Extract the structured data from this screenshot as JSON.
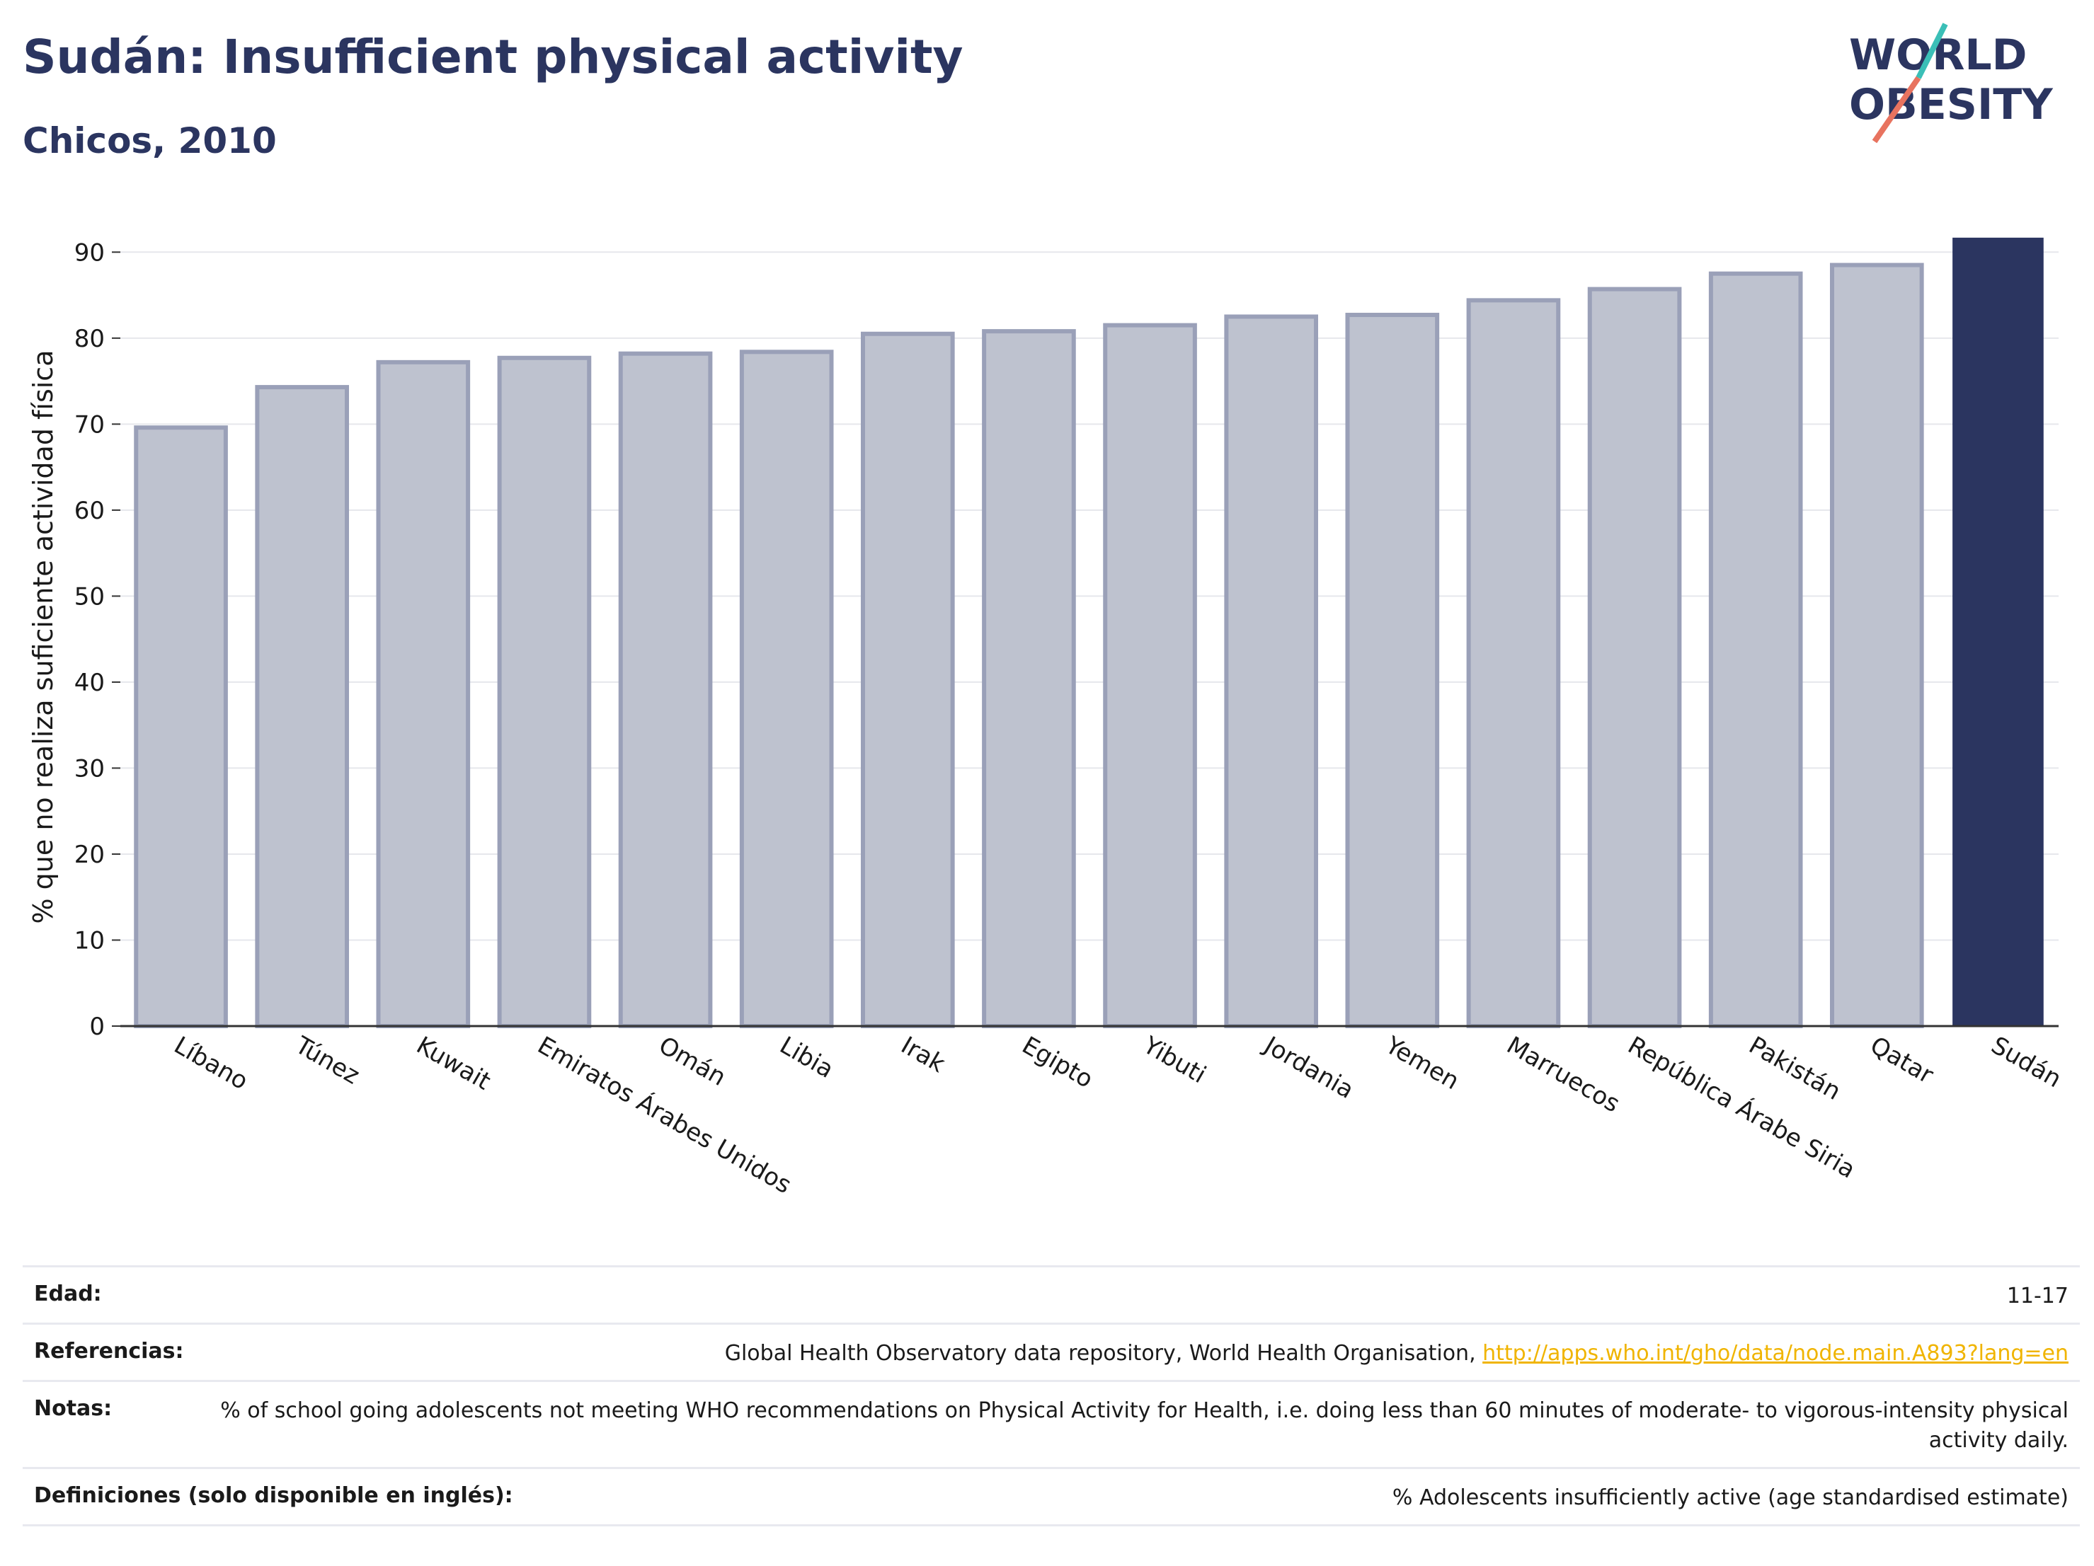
{
  "header": {
    "title": "Sudán: Insufficient physical activity",
    "subtitle": "Chicos, 2010"
  },
  "logo": {
    "line1": "WORLD",
    "line2": "OBESITY"
  },
  "colors": {
    "highlight": "#2b3560",
    "bar_fill": "#bec2cf",
    "bar_stroke": "#9aa0b8",
    "accent_teal": "#3bbfb7",
    "accent_coral": "#e8735f",
    "link": "#f0b400"
  },
  "chart_data": {
    "type": "bar",
    "categories": [
      "Líbano",
      "Túnez",
      "Kuwait",
      "Emiratos Árabes Unidos",
      "Omán",
      "Libia",
      "Irak",
      "Egipto",
      "Yibuti",
      "Jordania",
      "Yemen",
      "Marruecos",
      "República Árabe Siria",
      "Pakistán",
      "Qatar",
      "Sudán"
    ],
    "values": [
      69.6,
      74.3,
      77.2,
      77.7,
      78.2,
      78.4,
      80.5,
      80.8,
      81.5,
      82.5,
      82.7,
      84.4,
      85.7,
      87.5,
      88.5,
      91.6
    ],
    "highlight": "Sudán",
    "ylabel": "% que no realiza suficiente actividad física",
    "xlabel": "",
    "ylim": [
      0,
      92
    ],
    "yticks": [
      0,
      10,
      20,
      30,
      40,
      50,
      60,
      70,
      80,
      90
    ],
    "grid": true
  },
  "meta": {
    "rows": [
      {
        "key": "Edad:",
        "value": "11-17"
      },
      {
        "key": "Referencias:",
        "value": "Global Health Observatory data repository, World Health Organisation, ",
        "link": "http://apps.who.int/gho/data/node.main.A893?lang=en"
      },
      {
        "key": "Notas:",
        "value": "% of school going adolescents not meeting WHO recommendations on Physical Activity for Health, i.e. doing less than 60 minutes of moderate- to vigorous-intensity physical activity daily."
      },
      {
        "key": "Definiciones (solo disponible en inglés):",
        "value": "% Adolescents insufficiently active (age standardised estimate)"
      }
    ]
  }
}
